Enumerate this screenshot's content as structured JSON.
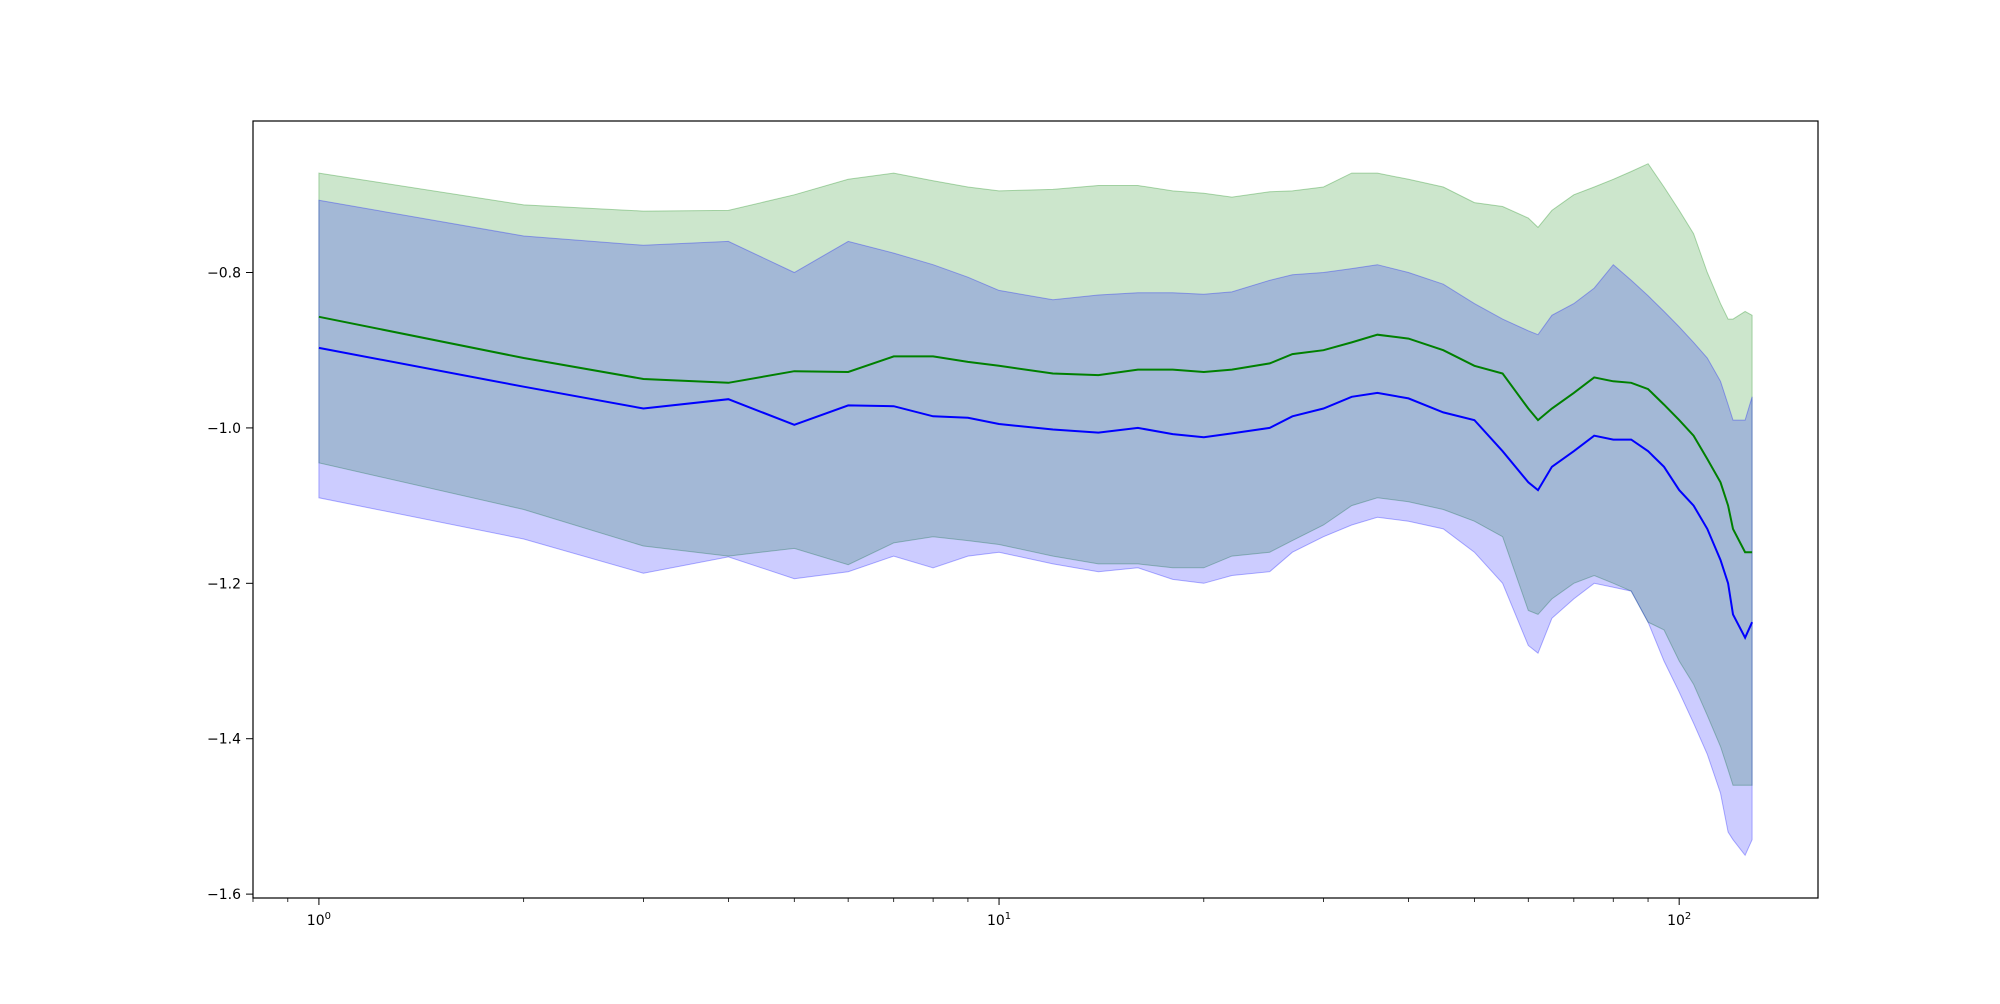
{
  "chart_data": {
    "type": "line",
    "title": "",
    "xlabel": "",
    "ylabel": "",
    "x_scale": "log",
    "xlim": [
      0.8,
      160
    ],
    "ylim": [
      -1.605,
      -0.605
    ],
    "grid": false,
    "legend": "none",
    "x_ticks": [
      {
        "value": 1,
        "base": "10",
        "exp": "0"
      },
      {
        "value": 10,
        "base": "10",
        "exp": "1"
      },
      {
        "value": 100,
        "base": "10",
        "exp": "2"
      }
    ],
    "y_ticks": [
      {
        "value": -0.8,
        "label": "−0.8"
      },
      {
        "value": -1.0,
        "label": "−1.0"
      },
      {
        "value": -1.2,
        "label": "−1.2"
      },
      {
        "value": -1.4,
        "label": "−1.4"
      },
      {
        "value": -1.6,
        "label": "−1.6"
      }
    ],
    "series": [
      {
        "color": "#008000",
        "band_color": "#008000",
        "band_opacity": 0.2,
        "x": [
          1,
          2,
          3,
          4,
          5,
          6,
          7,
          8,
          9,
          10,
          12,
          14,
          16,
          18,
          20,
          22,
          25,
          27,
          30,
          33,
          36,
          40,
          45,
          50,
          55,
          60,
          62,
          65,
          70,
          75,
          80,
          85,
          90,
          95,
          100,
          105,
          110,
          115,
          118,
          120,
          125,
          128
        ],
        "y": [
          -0.857,
          -0.91,
          -0.937,
          -0.942,
          -0.927,
          -0.928,
          -0.908,
          -0.908,
          -0.915,
          -0.92,
          -0.93,
          -0.932,
          -0.925,
          -0.925,
          -0.928,
          -0.925,
          -0.917,
          -0.905,
          -0.9,
          -0.89,
          -0.88,
          -0.885,
          -0.9,
          -0.92,
          -0.93,
          -0.975,
          -0.99,
          -0.975,
          -0.955,
          -0.935,
          -0.94,
          -0.942,
          -0.95,
          -0.97,
          -0.99,
          -1.01,
          -1.04,
          -1.07,
          -1.1,
          -1.13,
          -1.16,
          -1.16
        ],
        "upper": [
          -0.672,
          -0.713,
          -0.721,
          -0.72,
          -0.7,
          -0.68,
          -0.672,
          -0.682,
          -0.69,
          -0.695,
          -0.693,
          -0.688,
          -0.688,
          -0.695,
          -0.698,
          -0.703,
          -0.696,
          -0.695,
          -0.69,
          -0.672,
          -0.672,
          -0.68,
          -0.69,
          -0.71,
          -0.715,
          -0.73,
          -0.742,
          -0.72,
          -0.7,
          -0.69,
          -0.68,
          -0.67,
          -0.66,
          -0.69,
          -0.72,
          -0.75,
          -0.8,
          -0.84,
          -0.86,
          -0.86,
          -0.85,
          -0.855
        ],
        "lower": [
          -1.045,
          -1.105,
          -1.152,
          -1.165,
          -1.155,
          -1.176,
          -1.148,
          -1.14,
          -1.145,
          -1.15,
          -1.165,
          -1.175,
          -1.175,
          -1.18,
          -1.18,
          -1.165,
          -1.16,
          -1.145,
          -1.125,
          -1.1,
          -1.09,
          -1.095,
          -1.105,
          -1.12,
          -1.14,
          -1.235,
          -1.24,
          -1.22,
          -1.2,
          -1.19,
          -1.2,
          -1.21,
          -1.25,
          -1.26,
          -1.3,
          -1.33,
          -1.37,
          -1.41,
          -1.44,
          -1.46,
          -1.46,
          -1.46
        ]
      },
      {
        "color": "#0000ff",
        "band_color": "#0000ff",
        "band_opacity": 0.2,
        "x": [
          1,
          2,
          3,
          4,
          5,
          6,
          7,
          8,
          9,
          10,
          12,
          14,
          16,
          18,
          20,
          22,
          25,
          27,
          30,
          33,
          36,
          40,
          45,
          50,
          55,
          60,
          62,
          65,
          70,
          75,
          80,
          85,
          90,
          95,
          100,
          105,
          110,
          115,
          118,
          120,
          125,
          128
        ],
        "y": [
          -0.897,
          -0.947,
          -0.975,
          -0.963,
          -0.996,
          -0.971,
          -0.972,
          -0.985,
          -0.987,
          -0.995,
          -1.002,
          -1.006,
          -1.0,
          -1.008,
          -1.012,
          -1.007,
          -1.0,
          -0.985,
          -0.975,
          -0.96,
          -0.955,
          -0.962,
          -0.98,
          -0.99,
          -1.03,
          -1.07,
          -1.08,
          -1.05,
          -1.03,
          -1.01,
          -1.015,
          -1.015,
          -1.03,
          -1.05,
          -1.08,
          -1.1,
          -1.13,
          -1.17,
          -1.2,
          -1.24,
          -1.27,
          -1.25
        ],
        "upper": [
          -0.707,
          -0.753,
          -0.765,
          -0.76,
          -0.8,
          -0.76,
          -0.775,
          -0.79,
          -0.806,
          -0.823,
          -0.835,
          -0.829,
          -0.826,
          -0.826,
          -0.828,
          -0.825,
          -0.81,
          -0.803,
          -0.8,
          -0.795,
          -0.79,
          -0.8,
          -0.815,
          -0.84,
          -0.86,
          -0.875,
          -0.88,
          -0.855,
          -0.84,
          -0.82,
          -0.79,
          -0.81,
          -0.83,
          -0.85,
          -0.87,
          -0.89,
          -0.91,
          -0.94,
          -0.97,
          -0.99,
          -0.99,
          -0.96
        ],
        "lower": [
          -1.09,
          -1.143,
          -1.187,
          -1.166,
          -1.194,
          -1.185,
          -1.165,
          -1.18,
          -1.165,
          -1.16,
          -1.175,
          -1.185,
          -1.18,
          -1.195,
          -1.2,
          -1.19,
          -1.185,
          -1.16,
          -1.14,
          -1.125,
          -1.115,
          -1.12,
          -1.13,
          -1.16,
          -1.2,
          -1.28,
          -1.29,
          -1.245,
          -1.22,
          -1.2,
          -1.205,
          -1.21,
          -1.25,
          -1.3,
          -1.34,
          -1.38,
          -1.42,
          -1.47,
          -1.52,
          -1.53,
          -1.55,
          -1.53
        ]
      }
    ]
  }
}
